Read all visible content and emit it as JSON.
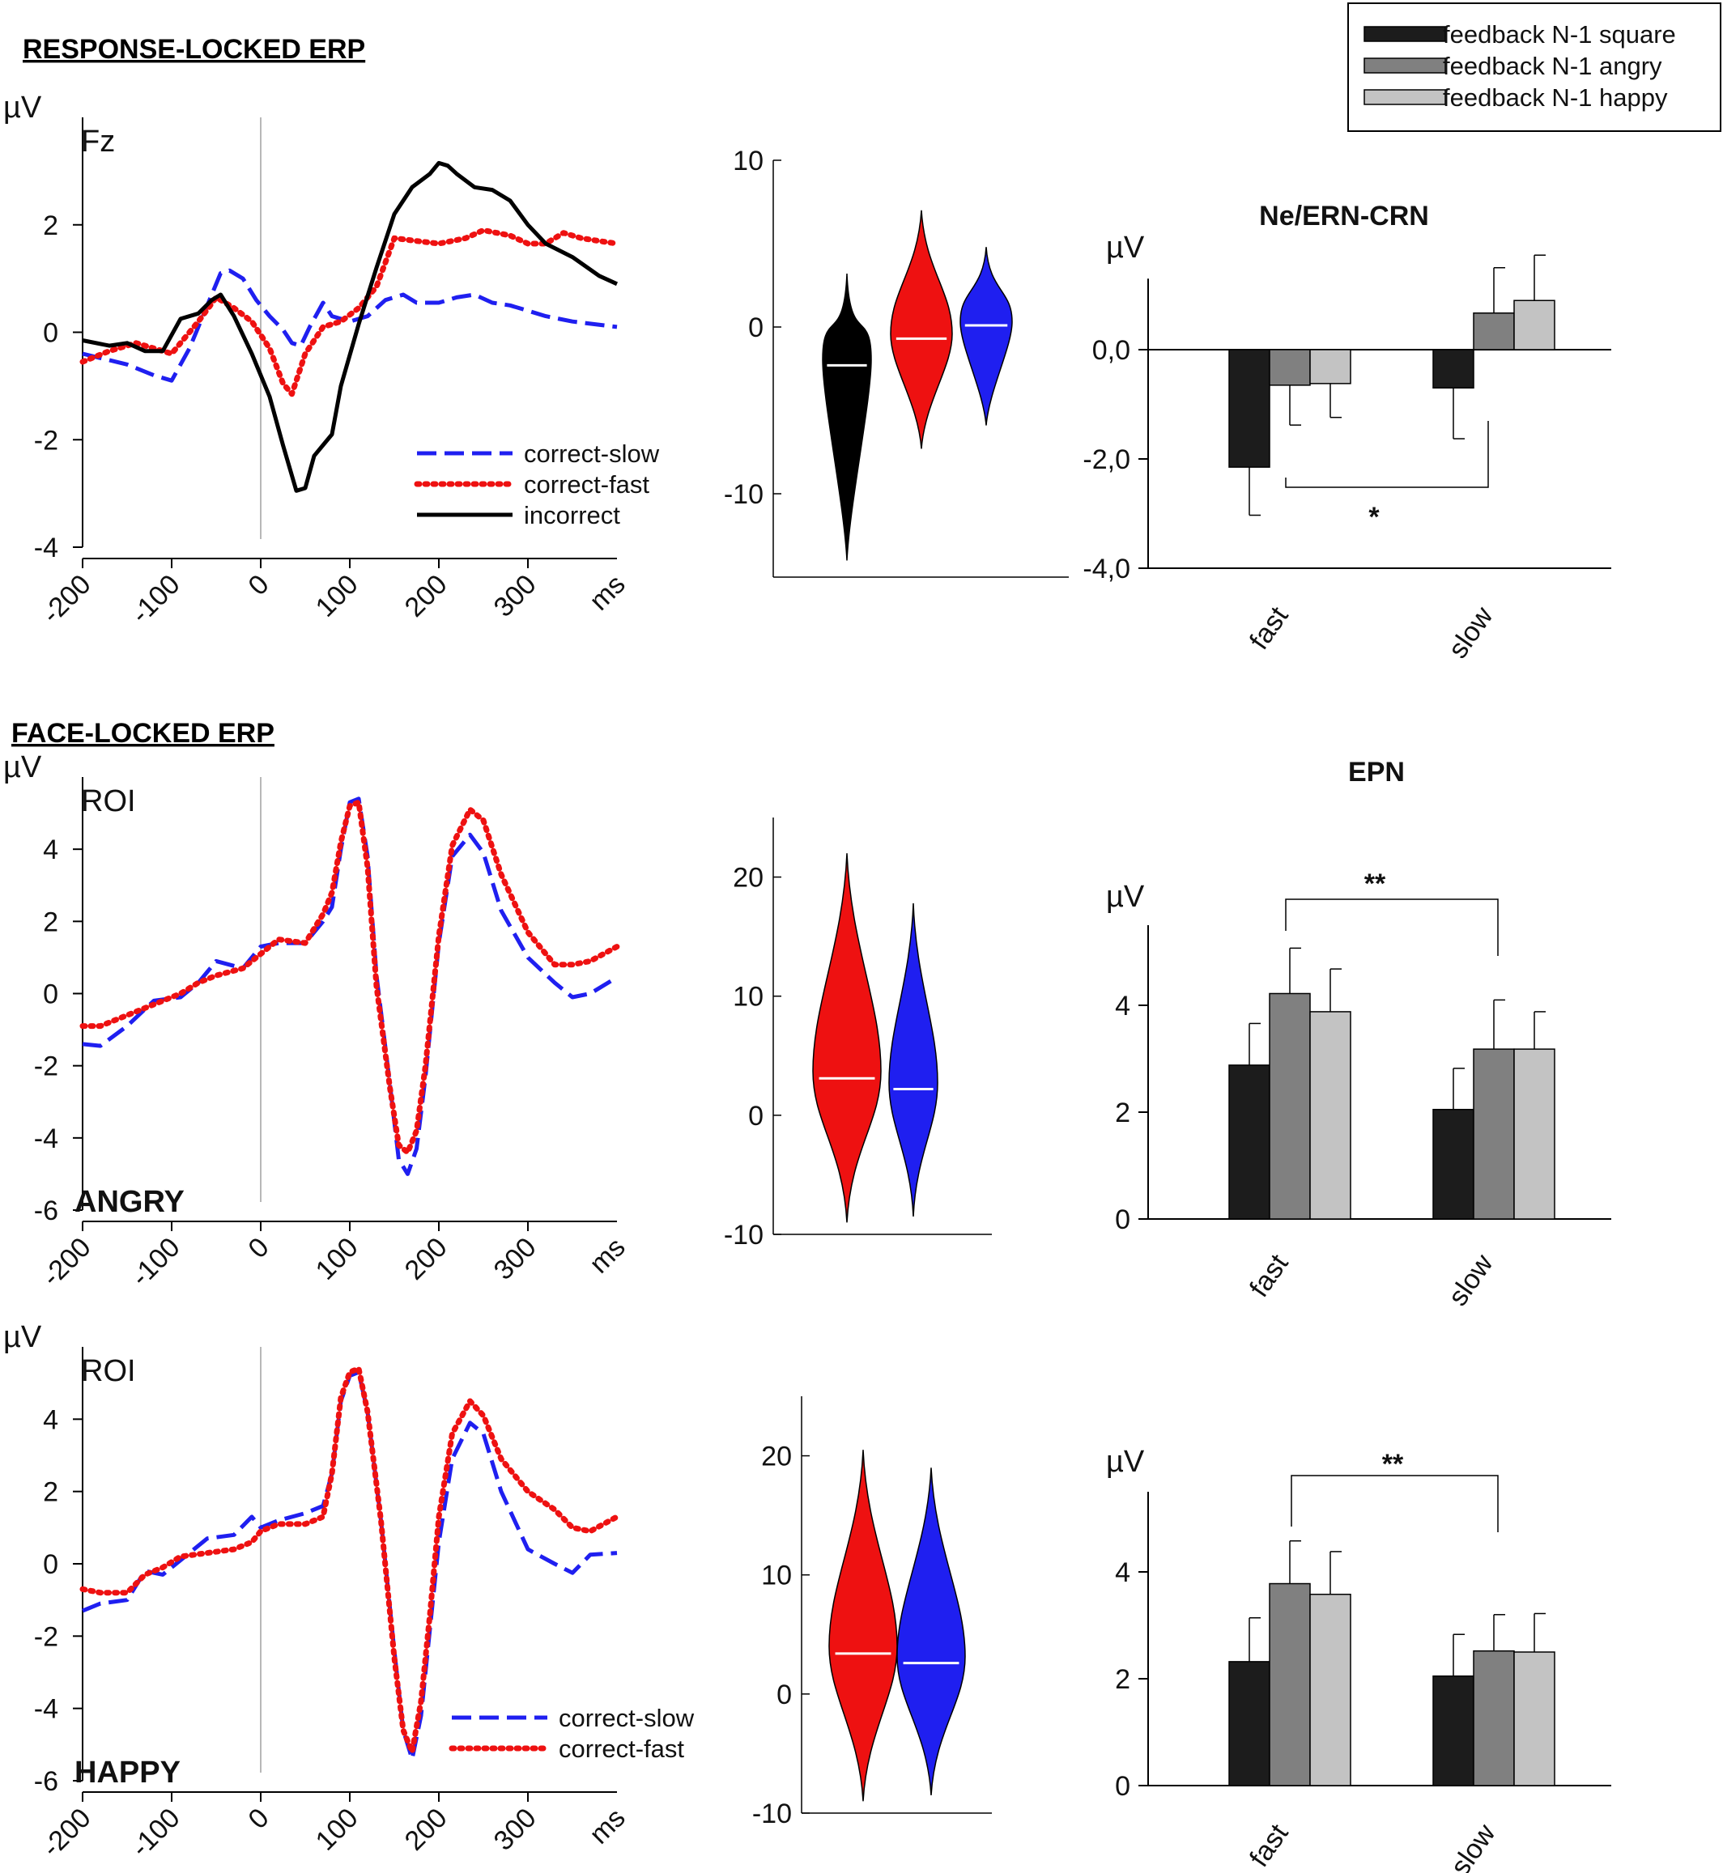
{
  "sections": {
    "response": "RESPONSE-LOCKED ERP",
    "face": "FACE-LOCKED ERP"
  },
  "legend": {
    "square": "feedback N-1 square",
    "angry": "feedback N-1 angry",
    "happy": "feedback N-1 happy"
  },
  "colors": {
    "slow": "#1f1ff0",
    "fast": "#ee1111",
    "incorrect": "#000000",
    "square": "#1c1c1c",
    "angry": "#808080",
    "happy": "#c3c3c3"
  },
  "chart_data": [
    {
      "id": "erp_response",
      "type": "line",
      "electrode": "Fz",
      "ylabel": "µV",
      "xunit": "ms",
      "xlim": [
        -200,
        400
      ],
      "ylim": [
        -4,
        4
      ],
      "xticks": [
        -200,
        -100,
        0,
        100,
        200,
        300
      ],
      "yticks": [
        -4,
        -2,
        0,
        2
      ],
      "series": [
        {
          "name": "correct-slow",
          "key": "slow",
          "style": "dashed",
          "x": [
            -200,
            -150,
            -120,
            -100,
            -80,
            -60,
            -45,
            -35,
            -20,
            -5,
            10,
            25,
            35,
            45,
            55,
            70,
            80,
            100,
            120,
            140,
            160,
            175,
            200,
            220,
            240,
            260,
            280,
            300,
            320,
            350,
            400
          ],
          "y": [
            -0.4,
            -0.6,
            -0.8,
            -0.9,
            -0.3,
            0.5,
            1.1,
            1.15,
            1.0,
            0.6,
            0.3,
            0.05,
            -0.2,
            -0.25,
            0.1,
            0.55,
            0.3,
            0.2,
            0.3,
            0.6,
            0.7,
            0.55,
            0.55,
            0.65,
            0.7,
            0.55,
            0.5,
            0.4,
            0.3,
            0.2,
            0.1
          ]
        },
        {
          "name": "correct-fast",
          "key": "fast",
          "style": "dotted",
          "x": [
            -200,
            -170,
            -140,
            -100,
            -70,
            -50,
            -30,
            -10,
            10,
            25,
            35,
            50,
            70,
            90,
            110,
            130,
            150,
            175,
            200,
            230,
            250,
            280,
            300,
            320,
            340,
            360,
            380,
            400
          ],
          "y": [
            -0.55,
            -0.35,
            -0.2,
            -0.4,
            0.2,
            0.65,
            0.45,
            0.2,
            -0.3,
            -0.95,
            -1.15,
            -0.4,
            0.1,
            0.2,
            0.45,
            0.85,
            1.75,
            1.7,
            1.65,
            1.75,
            1.9,
            1.8,
            1.65,
            1.65,
            1.85,
            1.75,
            1.7,
            1.65
          ]
        },
        {
          "name": "incorrect",
          "key": "incorrect",
          "style": "solid",
          "x": [
            -200,
            -170,
            -150,
            -130,
            -110,
            -90,
            -70,
            -55,
            -45,
            -30,
            -10,
            10,
            25,
            40,
            50,
            60,
            70,
            80,
            90,
            110,
            130,
            150,
            170,
            190,
            200,
            210,
            220,
            240,
            260,
            280,
            300,
            320,
            350,
            380,
            400
          ],
          "y": [
            -0.15,
            -0.25,
            -0.2,
            -0.35,
            -0.35,
            0.25,
            0.35,
            0.6,
            0.7,
            0.3,
            -0.4,
            -1.2,
            -2.1,
            -2.95,
            -2.9,
            -2.3,
            -2.1,
            -1.9,
            -1.0,
            0.15,
            1.2,
            2.2,
            2.7,
            2.95,
            3.15,
            3.1,
            2.95,
            2.7,
            2.65,
            2.45,
            2.0,
            1.65,
            1.4,
            1.05,
            0.9
          ]
        }
      ]
    },
    {
      "id": "violin_response",
      "type": "violin",
      "ylim": [
        -15,
        10
      ],
      "yticks": [
        -10,
        0,
        10
      ],
      "violins": [
        {
          "key": "incorrect",
          "median": -2.3,
          "min": -14,
          "max": 3.2
        },
        {
          "key": "fast",
          "median": -0.7,
          "min": -7.3,
          "max": 7.0
        },
        {
          "key": "slow",
          "median": 0.1,
          "min": -5.9,
          "max": 4.8
        }
      ]
    },
    {
      "id": "bar_ern",
      "type": "bar",
      "title": "Ne/ERN-CRN",
      "ylabel": "µV",
      "categories": [
        "fast",
        "slow"
      ],
      "ylim": [
        -4,
        1
      ],
      "yticks": [
        "-4,0",
        "-2,0",
        "0,0"
      ],
      "series": [
        {
          "key": "square",
          "values": [
            -2.15,
            -0.7
          ],
          "err": [
            0.88,
            0.93
          ]
        },
        {
          "key": "angry",
          "values": [
            -0.65,
            0.67
          ],
          "err": [
            0.73,
            0.83
          ]
        },
        {
          "key": "happy",
          "values": [
            -0.62,
            0.9
          ],
          "err": [
            0.62,
            0.83
          ]
        }
      ],
      "significance": "*"
    },
    {
      "id": "erp_angry",
      "type": "line",
      "electrode": "ROI",
      "condition": "ANGRY",
      "ylabel": "µV",
      "xunit": "ms",
      "xlim": [
        -200,
        400
      ],
      "ylim": [
        -6,
        6
      ],
      "xticks": [
        -200,
        -100,
        0,
        100,
        200,
        300
      ],
      "yticks": [
        -6,
        -4,
        -2,
        0,
        2,
        4
      ],
      "series": [
        {
          "name": "correct-slow",
          "key": "slow",
          "style": "dashed",
          "x": [
            -200,
            -180,
            -150,
            -120,
            -90,
            -70,
            -50,
            -20,
            0,
            20,
            50,
            70,
            80,
            90,
            100,
            110,
            120,
            130,
            145,
            155,
            165,
            175,
            185,
            200,
            215,
            235,
            250,
            270,
            300,
            330,
            350,
            370,
            400
          ],
          "y": [
            -1.4,
            -1.45,
            -0.9,
            -0.2,
            -0.1,
            0.3,
            0.9,
            0.7,
            1.3,
            1.4,
            1.4,
            2.0,
            2.4,
            4.0,
            5.3,
            5.4,
            3.8,
            0.5,
            -2.5,
            -4.6,
            -5.0,
            -4.3,
            -2.3,
            1.4,
            3.8,
            4.4,
            3.9,
            2.3,
            1.0,
            0.3,
            -0.1,
            0.0,
            0.45
          ]
        },
        {
          "name": "correct-fast",
          "key": "fast",
          "style": "dotted",
          "x": [
            -200,
            -180,
            -150,
            -120,
            -90,
            -70,
            -50,
            -20,
            0,
            20,
            50,
            70,
            80,
            90,
            100,
            110,
            120,
            130,
            145,
            155,
            165,
            175,
            185,
            200,
            215,
            235,
            250,
            270,
            300,
            330,
            350,
            370,
            400
          ],
          "y": [
            -0.9,
            -0.9,
            -0.6,
            -0.3,
            0.0,
            0.3,
            0.5,
            0.7,
            1.1,
            1.5,
            1.4,
            2.2,
            2.8,
            4.2,
            5.2,
            5.3,
            3.5,
            0.2,
            -2.6,
            -4.2,
            -4.4,
            -3.8,
            -2.0,
            1.6,
            4.1,
            5.1,
            4.8,
            3.3,
            1.7,
            0.8,
            0.8,
            0.9,
            1.3
          ]
        }
      ]
    },
    {
      "id": "violin_angry",
      "type": "violin",
      "ylim": [
        -10,
        25
      ],
      "yticks": [
        -10,
        0,
        10,
        20
      ],
      "violins": [
        {
          "key": "fast",
          "median": 3.1,
          "min": -9.0,
          "max": 22.0
        },
        {
          "key": "slow",
          "median": 2.2,
          "min": -8.5,
          "max": 17.8
        }
      ]
    },
    {
      "id": "bar_epn_angry",
      "type": "bar",
      "title": "EPN",
      "ylabel": "µV",
      "categories": [
        "fast",
        "slow"
      ],
      "ylim": [
        0,
        6
      ],
      "yticks": [
        "0",
        "2",
        "4"
      ],
      "series": [
        {
          "key": "square",
          "values": [
            2.88,
            2.05
          ],
          "err": [
            0.78,
            0.77
          ]
        },
        {
          "key": "angry",
          "values": [
            4.22,
            3.18
          ],
          "err": [
            0.85,
            0.92
          ]
        },
        {
          "key": "happy",
          "values": [
            3.88,
            3.18
          ],
          "err": [
            0.8,
            0.7
          ]
        }
      ],
      "significance": "**"
    },
    {
      "id": "erp_happy",
      "type": "line",
      "electrode": "ROI",
      "condition": "HAPPY",
      "ylabel": "µV",
      "xunit": "ms",
      "xlim": [
        -200,
        400
      ],
      "ylim": [
        -6,
        6
      ],
      "xticks": [
        -200,
        -100,
        0,
        100,
        200,
        300
      ],
      "yticks": [
        -6,
        -4,
        -2,
        0,
        2,
        4
      ],
      "series": [
        {
          "name": "correct-slow",
          "key": "slow",
          "style": "dashed",
          "x": [
            -200,
            -180,
            -150,
            -130,
            -110,
            -90,
            -60,
            -30,
            -10,
            0,
            20,
            50,
            70,
            80,
            90,
            100,
            110,
            120,
            135,
            150,
            160,
            170,
            180,
            190,
            200,
            215,
            235,
            250,
            270,
            300,
            330,
            350,
            370,
            400
          ],
          "y": [
            -1.3,
            -1.1,
            -1.0,
            -0.2,
            -0.3,
            0.1,
            0.7,
            0.8,
            1.3,
            1.0,
            1.2,
            1.4,
            1.6,
            2.5,
            4.5,
            5.2,
            5.3,
            4.2,
            1.2,
            -2.4,
            -4.6,
            -5.4,
            -4.2,
            -1.8,
            0.6,
            2.9,
            3.9,
            3.6,
            2.0,
            0.4,
            0.0,
            -0.25,
            0.25,
            0.3
          ]
        },
        {
          "name": "correct-fast",
          "key": "fast",
          "style": "dotted",
          "x": [
            -200,
            -180,
            -150,
            -130,
            -110,
            -90,
            -60,
            -30,
            -10,
            0,
            20,
            50,
            70,
            80,
            90,
            100,
            110,
            120,
            135,
            150,
            160,
            170,
            180,
            190,
            200,
            215,
            235,
            250,
            270,
            300,
            330,
            350,
            370,
            400
          ],
          "y": [
            -0.7,
            -0.8,
            -0.8,
            -0.3,
            -0.1,
            0.2,
            0.3,
            0.4,
            0.6,
            0.9,
            1.1,
            1.1,
            1.3,
            2.5,
            4.6,
            5.3,
            5.4,
            4.2,
            1.2,
            -2.6,
            -4.6,
            -5.2,
            -3.8,
            -1.4,
            1.3,
            3.6,
            4.5,
            4.1,
            2.9,
            2.0,
            1.5,
            1.0,
            0.9,
            1.3
          ]
        }
      ]
    },
    {
      "id": "violin_happy",
      "type": "violin",
      "ylim": [
        -10,
        25
      ],
      "yticks": [
        -10,
        0,
        10,
        20
      ],
      "violins": [
        {
          "key": "fast",
          "median": 3.4,
          "min": -9.0,
          "max": 20.5
        },
        {
          "key": "slow",
          "median": 2.6,
          "min": -8.5,
          "max": 19.0
        }
      ]
    },
    {
      "id": "bar_epn_happy",
      "type": "bar",
      "ylabel": "µV",
      "categories": [
        "fast",
        "slow"
      ],
      "ylim": [
        0,
        6
      ],
      "yticks": [
        "0",
        "2",
        "4"
      ],
      "series": [
        {
          "key": "square",
          "values": [
            2.32,
            2.05
          ],
          "err": [
            0.82,
            0.78
          ]
        },
        {
          "key": "angry",
          "values": [
            3.78,
            2.52
          ],
          "err": [
            0.8,
            0.68
          ]
        },
        {
          "key": "happy",
          "values": [
            3.58,
            2.5
          ],
          "err": [
            0.8,
            0.72
          ]
        }
      ],
      "significance": "**"
    }
  ]
}
